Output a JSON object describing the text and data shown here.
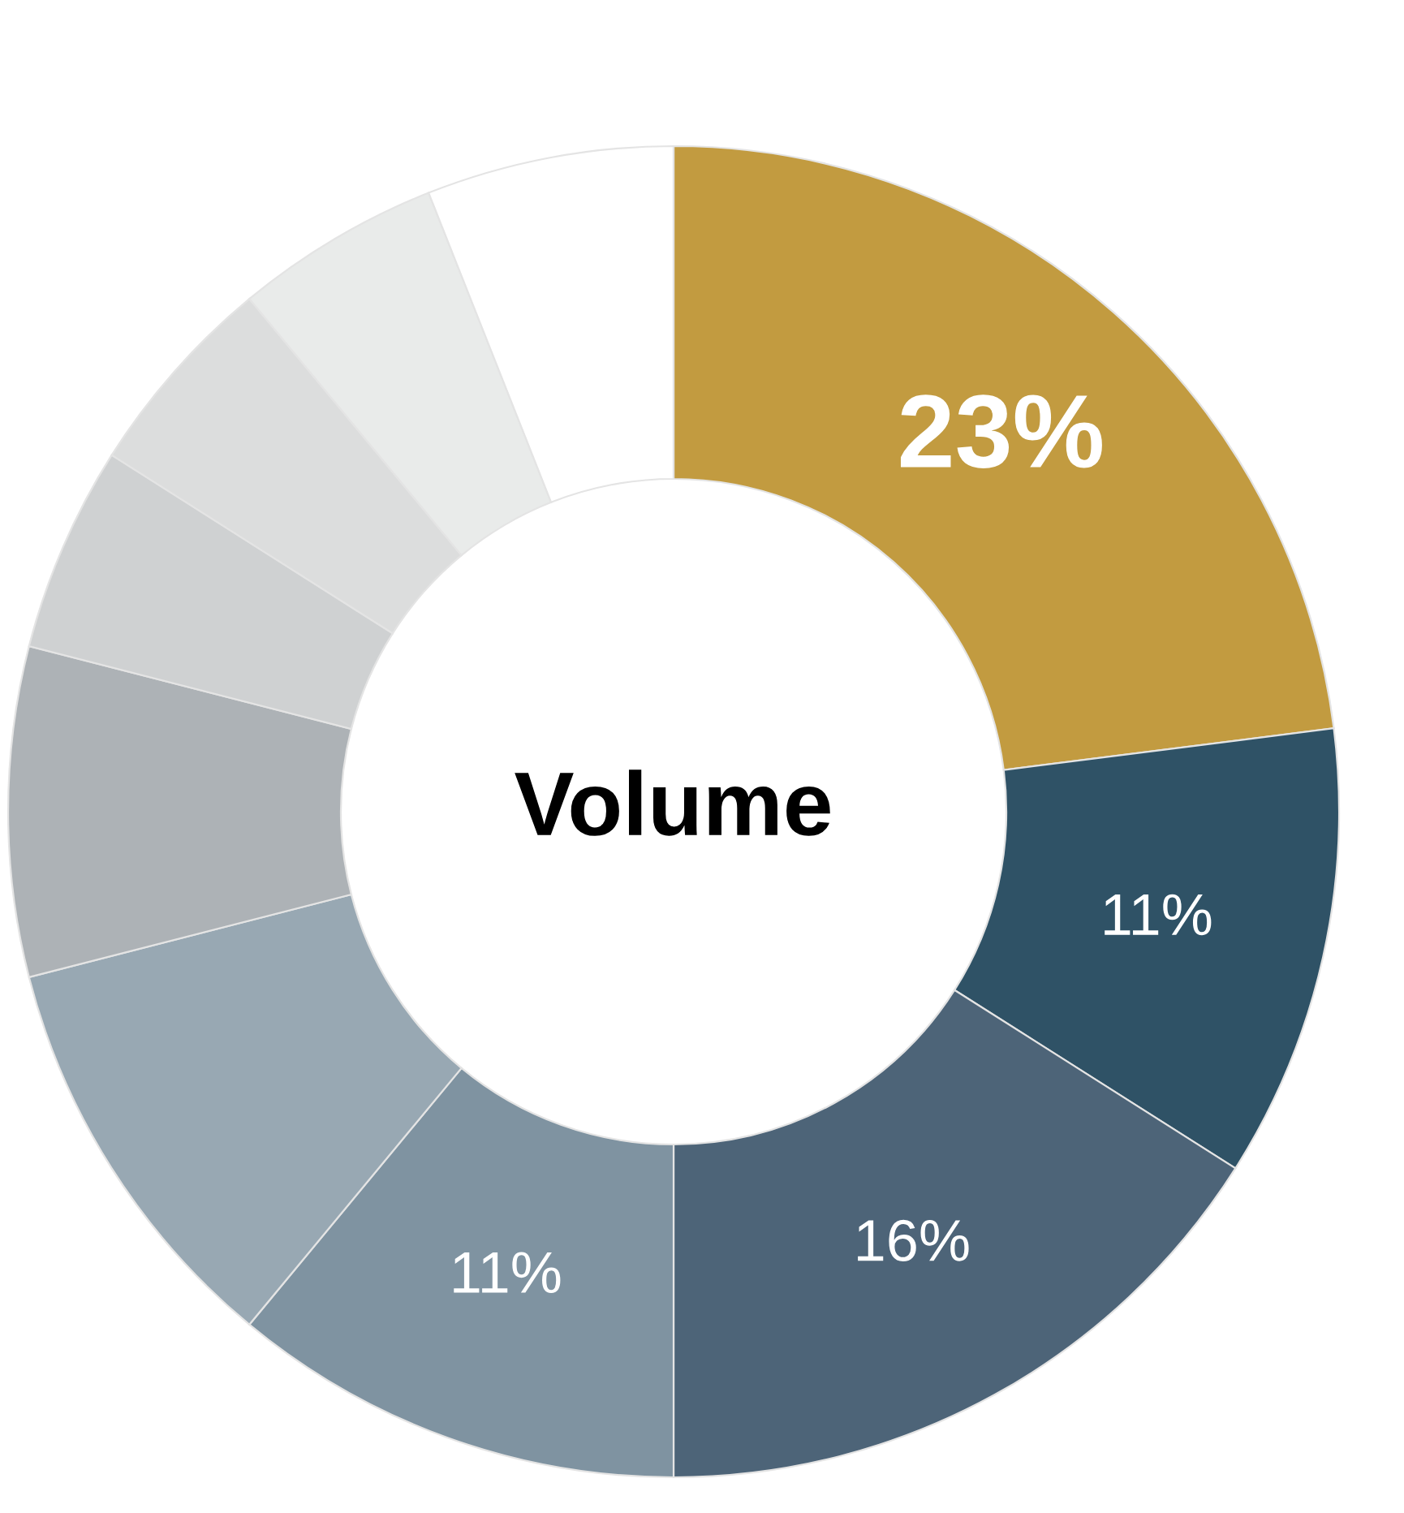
{
  "chart_data": {
    "type": "donut",
    "title": "Volume",
    "categories": [
      null,
      null,
      null,
      null,
      null,
      null,
      null,
      null,
      null,
      null
    ],
    "values": [
      23,
      11,
      16,
      11,
      10,
      8,
      5,
      5,
      5,
      6
    ],
    "colors": [
      "#c29b40",
      "#2f5266",
      "#4d6478",
      "#7f93a1",
      "#98a8b3",
      "#adb2b6",
      "#cfd1d2",
      "#dcdddd",
      "#e9ebea",
      "#ffffff"
    ],
    "value_labels": [
      "23%",
      "11%",
      "16%",
      "11%",
      null,
      null,
      null,
      null,
      null,
      null
    ]
  }
}
